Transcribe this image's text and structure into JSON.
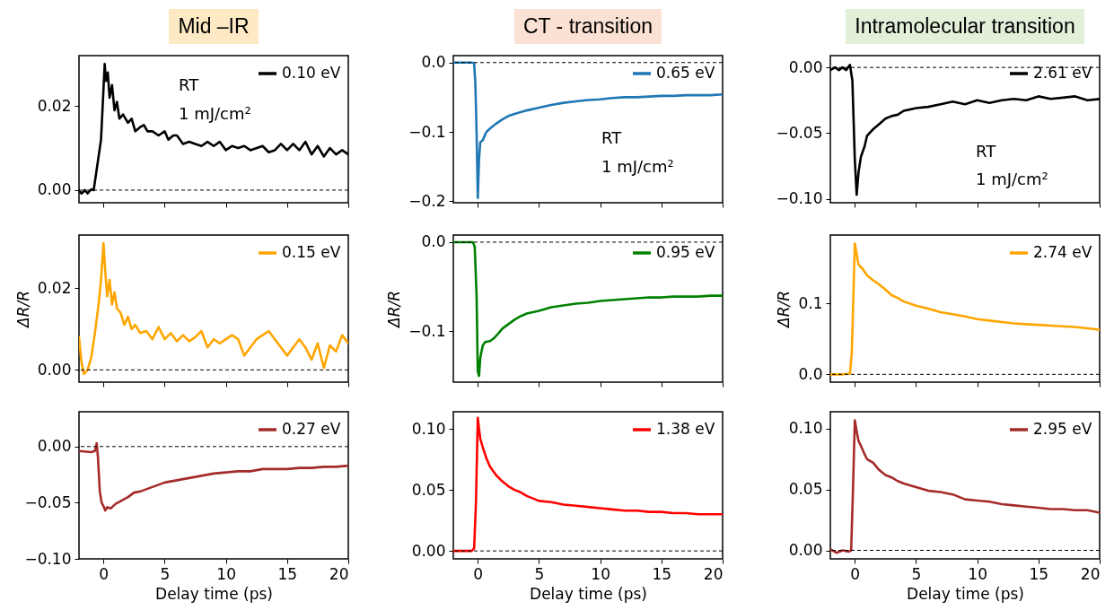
{
  "chart_data": [
    {
      "type": "line",
      "title": "Mid –IR",
      "annotations": [
        "RT",
        "1 mJ/cm²"
      ],
      "x": [
        -2,
        -1.8,
        -1.5,
        -1.3,
        -1,
        -0.8,
        -0.6,
        -0.4,
        -0.2,
        0,
        0.1,
        0.2,
        0.35,
        0.5,
        0.7,
        0.9,
        1.1,
        1.3,
        1.6,
        2,
        2.3,
        2.6,
        3,
        3.3,
        3.6,
        4,
        4.5,
        5,
        5.3,
        5.7,
        6,
        6.5,
        7,
        7.5,
        8,
        8.5,
        9,
        9.5,
        10,
        10.5,
        11,
        11.5,
        12,
        13,
        13.5,
        14,
        14.5,
        15,
        15.5,
        16,
        16.5,
        17,
        17.5,
        18,
        18.5,
        19,
        19.5,
        20
      ],
      "series": [
        {
          "name": "0.10 eV",
          "color": "#000000",
          "values": [
            0.0,
            -0.0008,
            0.0,
            -0.0008,
            0.0002,
            0.0,
            0.004,
            0.008,
            0.012,
            0.024,
            0.03,
            0.026,
            0.028,
            0.022,
            0.025,
            0.019,
            0.021,
            0.017,
            0.018,
            0.016,
            0.017,
            0.014,
            0.015,
            0.0155,
            0.014,
            0.014,
            0.013,
            0.014,
            0.012,
            0.013,
            0.013,
            0.011,
            0.0115,
            0.011,
            0.0105,
            0.0115,
            0.0105,
            0.0115,
            0.0095,
            0.0105,
            0.01,
            0.0105,
            0.0095,
            0.0105,
            0.009,
            0.0095,
            0.011,
            0.0095,
            0.011,
            0.0095,
            0.0115,
            0.0085,
            0.0105,
            0.008,
            0.01,
            0.0085,
            0.0095,
            0.0085
          ]
        }
      ],
      "xlim": [
        -2,
        20
      ],
      "xticks": [
        0,
        5,
        10,
        15,
        20
      ],
      "ylim": [
        -0.003,
        0.032
      ],
      "yticks": [
        {
          "value": 0,
          "label": "0.00"
        },
        {
          "value": 0.02,
          "label": "0.02"
        }
      ],
      "ref_lines": [
        {
          "axis": "y",
          "value": 0,
          "color": "#000000",
          "line_style": "dashed"
        }
      ],
      "legend": "top right",
      "tick_labels": "y"
    },
    {
      "type": "line",
      "title": "CT - transition",
      "annotations": [
        "RT",
        "1 mJ/cm²"
      ],
      "x": [
        -2,
        -0.5,
        -0.3,
        -0.2,
        -0.1,
        0,
        0.1,
        0.2,
        0.4,
        0.7,
        1,
        1.5,
        2,
        2.5,
        3,
        4,
        5,
        6,
        7,
        8,
        9,
        10,
        11,
        12,
        13,
        14,
        15,
        16,
        17,
        18,
        19,
        20
      ],
      "series": [
        {
          "name": "0.65 eV",
          "color": "#1f77b4",
          "values": [
            0.0,
            0.0,
            -0.001,
            -0.03,
            -0.1,
            -0.195,
            -0.14,
            -0.115,
            -0.112,
            -0.1,
            -0.095,
            -0.088,
            -0.082,
            -0.077,
            -0.074,
            -0.069,
            -0.065,
            -0.061,
            -0.058,
            -0.056,
            -0.054,
            -0.053,
            -0.051,
            -0.05,
            -0.05,
            -0.049,
            -0.048,
            -0.048,
            -0.047,
            -0.047,
            -0.047,
            -0.046
          ]
        }
      ],
      "xlim": [
        -2,
        20
      ],
      "xticks": [
        0,
        5,
        10,
        15,
        20
      ],
      "ylim": [
        -0.202,
        0.01
      ],
      "yticks": [
        {
          "value": -0.2,
          "label": "−0.2"
        },
        {
          "value": -0.1,
          "label": "−0.1"
        },
        {
          "value": 0,
          "label": "0.0"
        }
      ],
      "ref_lines": [
        {
          "axis": "y",
          "value": 0,
          "color": "#000000",
          "line_style": "dashed"
        }
      ],
      "legend": "top right",
      "tick_labels": "y"
    },
    {
      "type": "line",
      "title": "Intramolecular transition",
      "annotations": [
        "RT",
        "1 mJ/cm²"
      ],
      "x": [
        -2,
        -1.6,
        -1.3,
        -1,
        -0.7,
        -0.4,
        -0.2,
        0,
        0.15,
        0.3,
        0.5,
        0.8,
        1,
        1.5,
        2,
        2.5,
        3,
        3.5,
        4,
        5,
        6,
        7,
        8,
        9,
        10,
        11,
        12,
        13,
        14,
        15,
        16,
        17,
        18,
        19,
        20
      ],
      "series": [
        {
          "name": "2.61 eV",
          "color": "#000000",
          "values": [
            -0.002,
            0.0,
            -0.002,
            0.0,
            -0.002,
            0.002,
            -0.01,
            -0.07,
            -0.097,
            -0.08,
            -0.068,
            -0.06,
            -0.052,
            -0.047,
            -0.043,
            -0.039,
            -0.037,
            -0.036,
            -0.033,
            -0.031,
            -0.03,
            -0.028,
            -0.026,
            -0.028,
            -0.025,
            -0.027,
            -0.025,
            -0.024,
            -0.025,
            -0.022,
            -0.024,
            -0.023,
            -0.022,
            -0.025,
            -0.024
          ]
        }
      ],
      "xlim": [
        -2,
        20
      ],
      "xticks": [
        0,
        5,
        10,
        15,
        20
      ],
      "ylim": [
        -0.103,
        0.009
      ],
      "yticks": [
        {
          "value": -0.1,
          "label": "−0.10"
        },
        {
          "value": -0.05,
          "label": "−0.05"
        },
        {
          "value": 0,
          "label": "0.00"
        }
      ],
      "ref_lines": [
        {
          "axis": "y",
          "value": 0,
          "color": "#000000",
          "line_style": "dashed"
        }
      ],
      "legend": "top right",
      "tick_labels": "y"
    },
    {
      "type": "line",
      "ylabel": "ΔR/R",
      "x": [
        -2,
        -1.8,
        -1.6,
        -1.3,
        -1,
        -0.7,
        -0.4,
        -0.2,
        0,
        0.15,
        0.3,
        0.5,
        0.7,
        0.9,
        1.1,
        1.4,
        1.7,
        2,
        2.3,
        2.6,
        3,
        3.5,
        4,
        4.5,
        5,
        5.5,
        6,
        6.5,
        7,
        7.5,
        8,
        8.5,
        9,
        9.5,
        10,
        10.5,
        11,
        11.5,
        12,
        12.5,
        13,
        13.5,
        14,
        14.5,
        15,
        15.5,
        16,
        16.5,
        17,
        17.5,
        18,
        18.5,
        19,
        19.5,
        20
      ],
      "series": [
        {
          "name": "0.15 eV",
          "color": "#ffa500",
          "values": [
            0.008,
            0.002,
            -0.001,
            0.0,
            0.003,
            0.009,
            0.016,
            0.022,
            0.031,
            0.024,
            0.018,
            0.022,
            0.016,
            0.019,
            0.015,
            0.014,
            0.011,
            0.013,
            0.01,
            0.011,
            0.009,
            0.0095,
            0.0075,
            0.0105,
            0.0075,
            0.009,
            0.007,
            0.0085,
            0.007,
            0.008,
            0.0095,
            0.0055,
            0.0075,
            0.0065,
            0.0075,
            0.0085,
            0.0075,
            0.0035,
            0.0055,
            0.0075,
            0.0085,
            0.0095,
            0.0075,
            0.0055,
            0.0035,
            0.0055,
            0.0075,
            0.0055,
            0.0025,
            0.0065,
            0.0005,
            0.006,
            0.0045,
            0.0085,
            0.0065
          ]
        }
      ],
      "xlim": [
        -2,
        20
      ],
      "xticks": [
        0,
        5,
        10,
        15,
        20
      ],
      "ylim": [
        -0.003,
        0.033
      ],
      "yticks": [
        {
          "value": 0,
          "label": "0.00"
        },
        {
          "value": 0.02,
          "label": "0.02"
        }
      ],
      "ref_lines": [
        {
          "axis": "y",
          "value": 0,
          "color": "#000000",
          "line_style": "dashed"
        }
      ],
      "legend": "top right",
      "tick_labels": "y"
    },
    {
      "type": "line",
      "ylabel": "ΔR/R",
      "x": [
        -2,
        -0.4,
        -0.25,
        -0.1,
        0,
        0.1,
        0.2,
        0.4,
        0.6,
        1,
        1.3,
        1.7,
        2,
        2.5,
        3,
        3.5,
        4,
        5,
        6,
        7,
        8,
        9,
        10,
        11,
        12,
        13,
        14,
        15,
        16,
        17,
        18,
        19,
        20
      ],
      "series": [
        {
          "name": "0.95 eV",
          "color": "#008000",
          "values": [
            0.0,
            0.0,
            -0.005,
            -0.06,
            -0.145,
            -0.15,
            -0.13,
            -0.116,
            -0.112,
            -0.111,
            -0.108,
            -0.102,
            -0.097,
            -0.092,
            -0.087,
            -0.083,
            -0.08,
            -0.077,
            -0.073,
            -0.071,
            -0.069,
            -0.068,
            -0.066,
            -0.065,
            -0.064,
            -0.063,
            -0.062,
            -0.062,
            -0.061,
            -0.061,
            -0.061,
            -0.06,
            -0.06
          ]
        }
      ],
      "xlim": [
        -2,
        20
      ],
      "xticks": [
        0,
        5,
        10,
        15,
        20
      ],
      "ylim": [
        -0.157,
        0.008
      ],
      "yticks": [
        {
          "value": -0.1,
          "label": "−0.1"
        },
        {
          "value": 0,
          "label": "0.0"
        }
      ],
      "ref_lines": [
        {
          "axis": "y",
          "value": 0,
          "color": "#000000",
          "line_style": "dashed"
        }
      ],
      "legend": "top right",
      "tick_labels": "y"
    },
    {
      "type": "line",
      "ylabel": "ΔR/R",
      "x": [
        -2,
        -1,
        -0.4,
        -0.25,
        -0.1,
        0,
        0.15,
        0.3,
        0.6,
        1,
        1.5,
        2,
        2.5,
        3,
        3.5,
        4,
        5,
        6,
        7,
        8,
        9,
        10,
        11,
        12,
        13,
        14,
        15,
        16,
        17,
        18,
        19,
        20
      ],
      "series": [
        {
          "name": "2.74 eV",
          "color": "#ffa500",
          "values": [
            0.0,
            0.0,
            0.001,
            0.03,
            0.12,
            0.185,
            0.17,
            0.155,
            0.15,
            0.14,
            0.133,
            0.127,
            0.12,
            0.112,
            0.108,
            0.103,
            0.097,
            0.093,
            0.088,
            0.085,
            0.082,
            0.078,
            0.076,
            0.074,
            0.072,
            0.071,
            0.07,
            0.069,
            0.068,
            0.067,
            0.065,
            0.063
          ]
        }
      ],
      "xlim": [
        -2,
        20
      ],
      "xticks": [
        0,
        5,
        10,
        15,
        20
      ],
      "ylim": [
        -0.011,
        0.197
      ],
      "yticks": [
        {
          "value": 0,
          "label": "0.0"
        },
        {
          "value": 0.1,
          "label": "0.1"
        }
      ],
      "ref_lines": [
        {
          "axis": "y",
          "value": 0,
          "color": "#000000",
          "line_style": "dashed"
        }
      ],
      "legend": "top right",
      "tick_labels": "y"
    },
    {
      "type": "line",
      "xlabel": "Delay time (ps)",
      "x": [
        -2,
        -1,
        -0.7,
        -0.55,
        -0.45,
        -0.3,
        -0.15,
        0,
        0.15,
        0.3,
        0.6,
        1,
        1.5,
        2,
        2.5,
        3,
        3.5,
        4,
        5,
        6,
        7,
        8,
        9,
        10,
        11,
        12,
        13,
        14,
        15,
        16,
        17,
        18,
        19,
        20
      ],
      "series": [
        {
          "name": "0.27 eV",
          "color": "#a52a2a",
          "values": [
            -0.004,
            -0.005,
            -0.004,
            0.003,
            -0.01,
            -0.04,
            -0.05,
            -0.053,
            -0.057,
            -0.054,
            -0.055,
            -0.051,
            -0.048,
            -0.045,
            -0.041,
            -0.04,
            -0.038,
            -0.036,
            -0.032,
            -0.03,
            -0.028,
            -0.026,
            -0.024,
            -0.023,
            -0.022,
            -0.022,
            -0.02,
            -0.02,
            -0.02,
            -0.019,
            -0.019,
            -0.018,
            -0.018,
            -0.017
          ]
        }
      ],
      "xlim": [
        -2,
        20
      ],
      "xticks": [
        0,
        5,
        10,
        15,
        20
      ],
      "ylim": [
        -0.1,
        0.031
      ],
      "yticks": [
        {
          "value": -0.1,
          "label": "−0.10"
        },
        {
          "value": -0.05,
          "label": "−0.05"
        },
        {
          "value": 0,
          "label": "0.00"
        }
      ],
      "ref_lines": [
        {
          "axis": "y",
          "value": 0,
          "color": "#000000",
          "line_style": "dashed"
        }
      ],
      "legend": "top right"
    },
    {
      "type": "line",
      "xlabel": "Delay time (ps)",
      "x": [
        -2,
        -0.5,
        -0.3,
        -0.15,
        0,
        0.1,
        0.2,
        0.4,
        0.7,
        1,
        1.5,
        2,
        2.5,
        3,
        3.5,
        4,
        5,
        6,
        7,
        8,
        9,
        10,
        11,
        12,
        13,
        14,
        15,
        16,
        17,
        18,
        19,
        20
      ],
      "series": [
        {
          "name": "1.38 eV",
          "color": "#ff0000",
          "values": [
            0.0,
            0.0,
            0.002,
            0.04,
            0.109,
            0.1,
            0.092,
            0.085,
            0.076,
            0.069,
            0.062,
            0.057,
            0.053,
            0.05,
            0.048,
            0.045,
            0.041,
            0.04,
            0.038,
            0.037,
            0.036,
            0.035,
            0.034,
            0.033,
            0.033,
            0.032,
            0.032,
            0.031,
            0.031,
            0.03,
            0.03,
            0.03
          ]
        }
      ],
      "xlim": [
        -2,
        20
      ],
      "xticks": [
        0,
        5,
        10,
        15,
        20
      ],
      "ylim": [
        -0.0065,
        0.114
      ],
      "yticks": [
        {
          "value": 0,
          "label": "0.00"
        },
        {
          "value": 0.05,
          "label": "0.05"
        },
        {
          "value": 0.1,
          "label": "0.10"
        }
      ],
      "ref_lines": [
        {
          "axis": "y",
          "value": 0,
          "color": "#000000",
          "line_style": "dashed"
        }
      ],
      "legend": "top right"
    },
    {
      "type": "line",
      "xlabel": "Delay time (ps)",
      "x": [
        -2,
        -1.5,
        -1,
        -0.5,
        -0.3,
        -0.15,
        0,
        0.15,
        0.3,
        0.5,
        0.8,
        1,
        1.5,
        2,
        2.5,
        3,
        3.5,
        4,
        5,
        6,
        7,
        8,
        9,
        10,
        11,
        12,
        13,
        14,
        15,
        16,
        17,
        18,
        19,
        20
      ],
      "series": [
        {
          "name": "2.95 eV",
          "color": "#a52a2a",
          "values": [
            0.001,
            -0.002,
            0.0,
            -0.001,
            0.0,
            0.05,
            0.107,
            0.098,
            0.09,
            0.086,
            0.079,
            0.075,
            0.072,
            0.066,
            0.062,
            0.06,
            0.057,
            0.055,
            0.052,
            0.049,
            0.048,
            0.046,
            0.042,
            0.041,
            0.04,
            0.038,
            0.037,
            0.036,
            0.035,
            0.034,
            0.034,
            0.033,
            0.033,
            0.031
          ]
        }
      ],
      "xlim": [
        -2,
        20
      ],
      "xticks": [
        0,
        5,
        10,
        15,
        20
      ],
      "ylim": [
        -0.007,
        0.114
      ],
      "yticks": [
        {
          "value": 0,
          "label": "0.00"
        },
        {
          "value": 0.05,
          "label": "0.05"
        },
        {
          "value": 0.1,
          "label": "0.10"
        }
      ],
      "ref_lines": [
        {
          "axis": "y",
          "value": 0,
          "color": "#000000",
          "line_style": "dashed"
        }
      ],
      "legend": "top right"
    }
  ]
}
